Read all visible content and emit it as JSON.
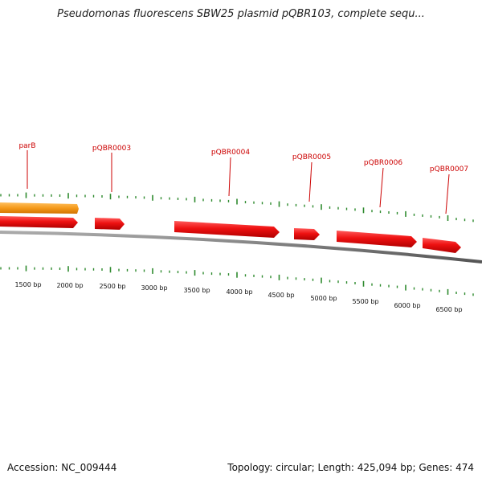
{
  "title": "Pseudomonas fluorescens SBW25 plasmid pQBR103, complete sequ...",
  "footer": {
    "accession": "Accession: NC_009444",
    "summary": "Topology: circular; Length: 425,094 bp; Genes: 474"
  },
  "colors": {
    "gene_forward": "#ee1111",
    "gene_highlight": "#f59a1a",
    "label": "#cc0000",
    "tick": "#2e8a2e",
    "backbone": "#888888"
  },
  "genes": [
    {
      "name": "parB",
      "strand": "forward",
      "highlighted": true
    },
    {
      "name": "pQBR0003",
      "strand": "forward"
    },
    {
      "name": "pQBR0004",
      "strand": "forward"
    },
    {
      "name": "pQBR0005",
      "strand": "forward"
    },
    {
      "name": "pQBR0006",
      "strand": "forward"
    },
    {
      "name": "pQBR0007",
      "strand": "forward"
    }
  ],
  "ruler": {
    "labels": [
      "1500 bp",
      "2000 bp",
      "2500 bp",
      "3000 bp",
      "3500 bp",
      "4000 bp",
      "4500 bp",
      "5000 bp",
      "5500 bp",
      "6000 bp",
      "6500 bp"
    ]
  }
}
